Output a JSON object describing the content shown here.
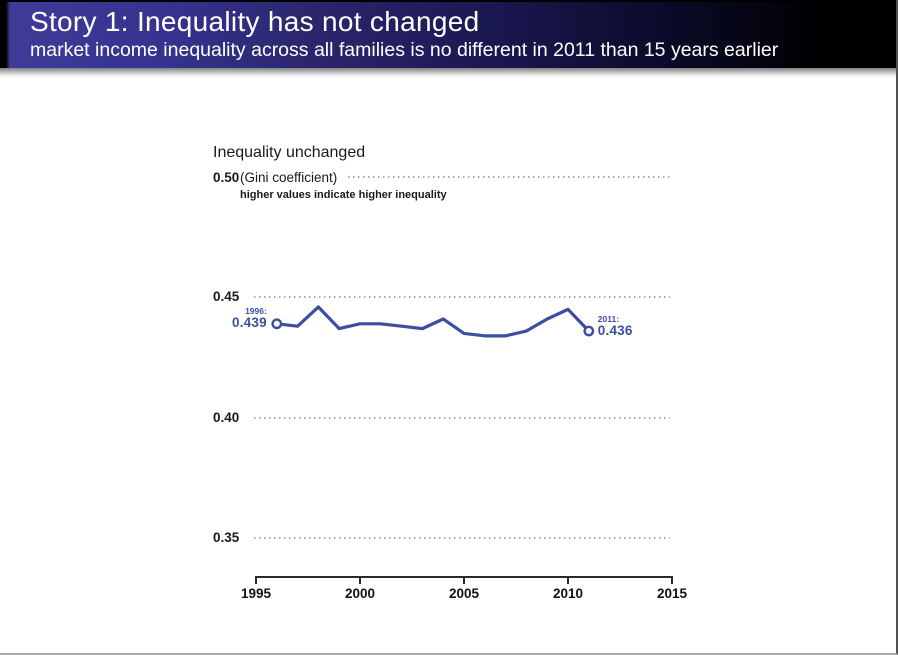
{
  "header": {
    "title": "Story 1: Inequality has not changed",
    "subtitle": "market income inequality across all families is no different in 2011 than 15 years earlier",
    "colors": {
      "gradient_start": "#3E3B96",
      "gradient_end": "#000000",
      "text": "#FFFFFF"
    }
  },
  "chart": {
    "title": "Inequality unchanged",
    "unit_label": "(Gini coefficient)",
    "note": "higher values indicate higher inequality",
    "start_annotation": {
      "year_label": "1996:",
      "value_label": "0.439"
    },
    "end_annotation": {
      "year_label": "2011:",
      "value_label": "0.436"
    },
    "colors": {
      "line": "#3C4EA0",
      "grid": "#ABABAB",
      "text": "#1A1A1A"
    }
  },
  "chart_data": {
    "type": "line",
    "title": "Inequality unchanged",
    "xlabel": "",
    "ylabel": "Gini coefficient",
    "x": [
      1996,
      1997,
      1998,
      1999,
      2000,
      2001,
      2002,
      2003,
      2004,
      2005,
      2006,
      2007,
      2008,
      2009,
      2010,
      2011
    ],
    "values": [
      0.439,
      0.438,
      0.446,
      0.437,
      0.439,
      0.439,
      0.438,
      0.437,
      0.441,
      0.435,
      0.434,
      0.434,
      0.436,
      0.441,
      0.445,
      0.436
    ],
    "xlim": [
      1995,
      2015
    ],
    "ylim": [
      0.35,
      0.5
    ],
    "x_ticks": [
      1995,
      2000,
      2005,
      2010,
      2015
    ],
    "x_tick_labels": [
      "1995",
      "2000",
      "2005",
      "2010",
      "2015"
    ],
    "y_ticks": [
      0.5,
      0.45,
      0.4,
      0.35
    ],
    "y_tick_labels": [
      "0.50",
      "0.45",
      "0.40",
      "0.35"
    ],
    "grid": "dotted-horizontal",
    "legend": "none",
    "marker": "open-circle-endpoints",
    "annotations": [
      {
        "x": 1996,
        "y": 0.439,
        "text": "1996: 0.439"
      },
      {
        "x": 2011,
        "y": 0.436,
        "text": "2011: 0.436"
      }
    ]
  }
}
